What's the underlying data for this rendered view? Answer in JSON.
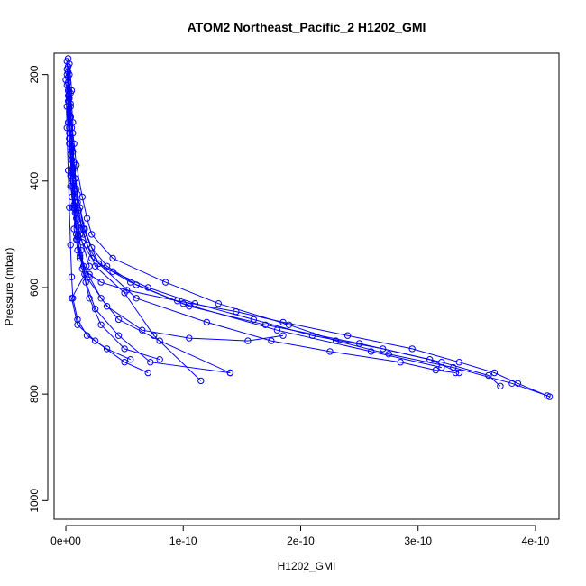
{
  "chart_data": {
    "type": "line",
    "title": "ATOM2 Northeast_Pacific_2 H1202_GMI",
    "xlabel": "H1202_GMI",
    "ylabel": "Pressure (mbar)",
    "xlim": [
      -1e-11,
      4.2e-10
    ],
    "ylim": [
      1035,
      160
    ],
    "y_reversed": true,
    "markers": "open-circle",
    "line_color": "#0000ff",
    "x_ticks": [
      {
        "value": 0,
        "label": "0e+00"
      },
      {
        "value": 1e-10,
        "label": "1e-10"
      },
      {
        "value": 2e-10,
        "label": "2e-10"
      },
      {
        "value": 3e-10,
        "label": "3e-10"
      },
      {
        "value": 4e-10,
        "label": "4e-10"
      }
    ],
    "y_ticks": [
      {
        "value": 200,
        "label": "200"
      },
      {
        "value": 400,
        "label": "400"
      },
      {
        "value": 600,
        "label": "600"
      },
      {
        "value": 800,
        "label": "800"
      },
      {
        "value": 1000,
        "label": "1000"
      }
    ],
    "series": [
      {
        "x": [
          2e-12,
          3e-12,
          2e-12,
          4e-12,
          3e-12,
          5e-12,
          6e-12,
          5e-12,
          8e-12,
          7e-12,
          9e-12,
          1e-11,
          1.2e-11,
          1.5e-11,
          2e-11,
          3e-11,
          5.2e-11,
          9.5e-11,
          1.45e-10,
          1.85e-10,
          2.4e-10,
          2.95e-10,
          3.35e-10,
          3.65e-10,
          3.85e-10,
          4.12e-10
        ],
        "y": [
          170,
          200,
          240,
          280,
          320,
          360,
          400,
          430,
          460,
          490,
          510,
          530,
          545,
          560,
          575,
          590,
          605,
          625,
          645,
          665,
          690,
          715,
          740,
          760,
          780,
          805
        ]
      },
      {
        "x": [
          1e-12,
          2e-12,
          4e-12,
          3e-12,
          6e-12,
          5e-12,
          8e-12,
          1.1e-11,
          1e-11,
          1.4e-11,
          2.2e-11,
          4e-11,
          7e-11,
          1.1e-10,
          1.6e-10,
          2.1e-10,
          2.7e-10,
          3.2e-10,
          3.6e-10,
          3.7e-10
        ],
        "y": [
          175,
          215,
          255,
          300,
          345,
          385,
          420,
          455,
          485,
          515,
          545,
          570,
          600,
          630,
          660,
          690,
          715,
          740,
          765,
          785
        ]
      },
      {
        "x": [
          3e-12,
          5e-12,
          4e-12,
          7e-12,
          6e-12,
          9e-12,
          1.2e-11,
          1.6e-11,
          2.2e-11,
          3.5e-11,
          6e-11,
          1.05e-10,
          1.7e-10,
          2.5e-10,
          3.1e-10,
          3.35e-10
        ],
        "y": [
          180,
          230,
          280,
          330,
          375,
          415,
          450,
          490,
          525,
          560,
          595,
          635,
          670,
          705,
          735,
          760
        ]
      },
      {
        "x": [
          2e-12,
          4e-12,
          6e-12,
          5e-12,
          8e-12,
          1e-11,
          1.3e-11,
          1.8e-11,
          2.8e-11,
          5.5e-11,
          1e-10,
          1.8e-10,
          2.6e-10,
          3.2e-10
        ],
        "y": [
          185,
          235,
          290,
          340,
          395,
          440,
          480,
          520,
          555,
          590,
          630,
          680,
          720,
          750
        ]
      },
      {
        "x": [
          1e-12,
          2e-12,
          3e-12,
          5e-12,
          4e-12,
          7e-12,
          9e-12,
          1.2e-11,
          2e-11,
          3e-11,
          4.5e-11,
          8e-11,
          1.4e-10
        ],
        "y": [
          190,
          250,
          310,
          360,
          410,
          450,
          500,
          540,
          580,
          620,
          660,
          700,
          760
        ]
      },
      {
        "x": [
          2e-12,
          4e-12,
          3e-12,
          6e-12,
          8e-12,
          1.5e-11,
          2.5e-11,
          5e-11,
          7.5e-11,
          1.15e-10
        ],
        "y": [
          195,
          260,
          320,
          380,
          440,
          500,
          560,
          610,
          690,
          775
        ]
      },
      {
        "x": [
          1e-12,
          3e-12,
          5e-12,
          4e-12,
          7e-12,
          1e-11,
          1.4e-11,
          2e-11,
          3e-11,
          5e-11,
          8e-11
        ],
        "y": [
          200,
          270,
          335,
          390,
          445,
          505,
          565,
          620,
          670,
          715,
          735
        ]
      },
      {
        "x": [
          2e-12,
          3e-12,
          5e-12,
          8e-12,
          6e-12,
          1e-11,
          1.6e-11,
          3.5e-11,
          6.5e-11,
          1.05e-10,
          1.55e-10,
          1.85e-10
        ],
        "y": [
          205,
          275,
          340,
          395,
          450,
          510,
          575,
          635,
          680,
          695,
          700,
          690
        ]
      },
      {
        "x": [
          0.0,
          1e-12,
          2e-12,
          3e-12,
          4e-12,
          5e-12,
          6e-12,
          1e-11,
          1.8e-11,
          3.5e-11,
          5.5e-11
        ],
        "y": [
          210,
          300,
          380,
          450,
          520,
          580,
          620,
          660,
          690,
          715,
          735
        ]
      },
      {
        "x": [
          1e-12,
          2e-12,
          4e-12,
          6e-12,
          9e-12,
          1.3e-11,
          1.7e-11,
          2.5e-11,
          4.5e-11,
          7.2e-11,
          1.4e-10
        ],
        "y": [
          220,
          290,
          350,
          410,
          470,
          530,
          590,
          640,
          690,
          740,
          760
        ]
      },
      {
        "x": [
          2e-12,
          5e-12,
          7e-12,
          1e-11,
          1.5e-11,
          2.8e-11,
          6e-11,
          1.2e-10,
          1.75e-10,
          2.25e-10,
          2.85e-10,
          3.15e-10,
          3.32e-10
        ],
        "y": [
          230,
          300,
          365,
          425,
          490,
          555,
          620,
          665,
          700,
          720,
          740,
          755,
          760
        ]
      },
      {
        "x": [
          3e-12,
          6e-12,
          9e-12,
          1.4e-11,
          1.8e-11,
          2.2e-11,
          4e-11,
          8.5e-11,
          1.3e-10,
          1.9e-10,
          2.3e-10,
          2.75e-10,
          3.3e-10,
          3.8e-10,
          4.1e-10
        ],
        "y": [
          245,
          310,
          370,
          430,
          470,
          500,
          545,
          590,
          630,
          670,
          700,
          725,
          750,
          780,
          803
        ]
      },
      {
        "x": [
          1e-12,
          3e-12,
          5e-12,
          8e-12,
          1.2e-11,
          2e-11,
          5e-12,
          1e-11,
          2.5e-11,
          5e-11,
          7e-11
        ],
        "y": [
          260,
          330,
          390,
          440,
          500,
          560,
          620,
          670,
          700,
          740,
          760
        ]
      }
    ]
  }
}
